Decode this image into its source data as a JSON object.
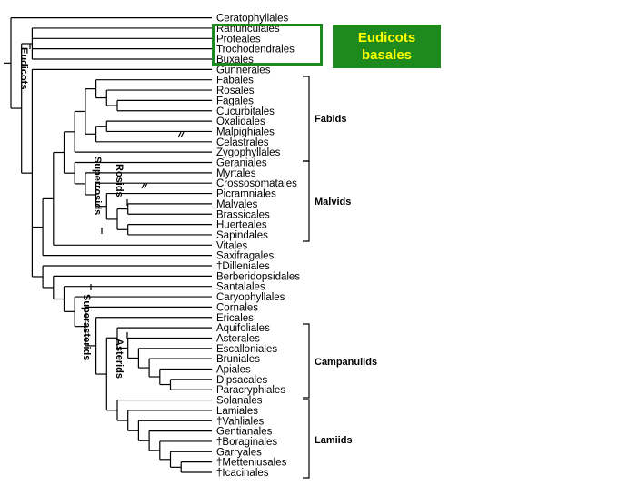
{
  "taxa": [
    "Ceratophyllales",
    "Ranunculales",
    "Proteales",
    "Trochodendrales",
    "Buxales",
    "Gunnerales",
    "Fabales",
    "Rosales",
    "Fagales",
    "Cucurbitales",
    "Oxalidales",
    "Malpighiales",
    "Celastrales",
    "Zygophyllales",
    "Geraniales",
    "Myrtales",
    "Crossosomatales",
    "Picramniales",
    "Malvales",
    "Brassicales",
    "Huerteales",
    "Sapindales",
    "Vitales",
    "Saxifragales",
    "†Dilleniales",
    "Berberidopsidales",
    "Santalales",
    "Caryophyllales",
    "Cornales",
    "Ericales",
    "Aquifoliales",
    "Asterales",
    "Escalloniales",
    "Bruniales",
    "Apiales",
    "Dipsacales",
    "Paracryphiales",
    "Solanales",
    "Lamiales",
    "†Vahliales",
    "Gentianales",
    "†Boraginales",
    "Garryales",
    "†Metteniusales",
    "†Icacinales"
  ],
  "clades": {
    "fabids": "Fabids",
    "malvids": "Malvids",
    "campanulids": "Campanulids",
    "lamiids": "Lamiids"
  },
  "branch_labels": {
    "eudicots": "Eudicots",
    "superrosids": "Superrosids",
    "rosids": "Rosids",
    "superasterids": "Superasterids",
    "asterids": "Asterids"
  },
  "badge": {
    "line1": "Eudicots",
    "line2": "basales"
  },
  "colors": {
    "highlight": "#1e8a1e",
    "badge_text": "#ffff00"
  }
}
